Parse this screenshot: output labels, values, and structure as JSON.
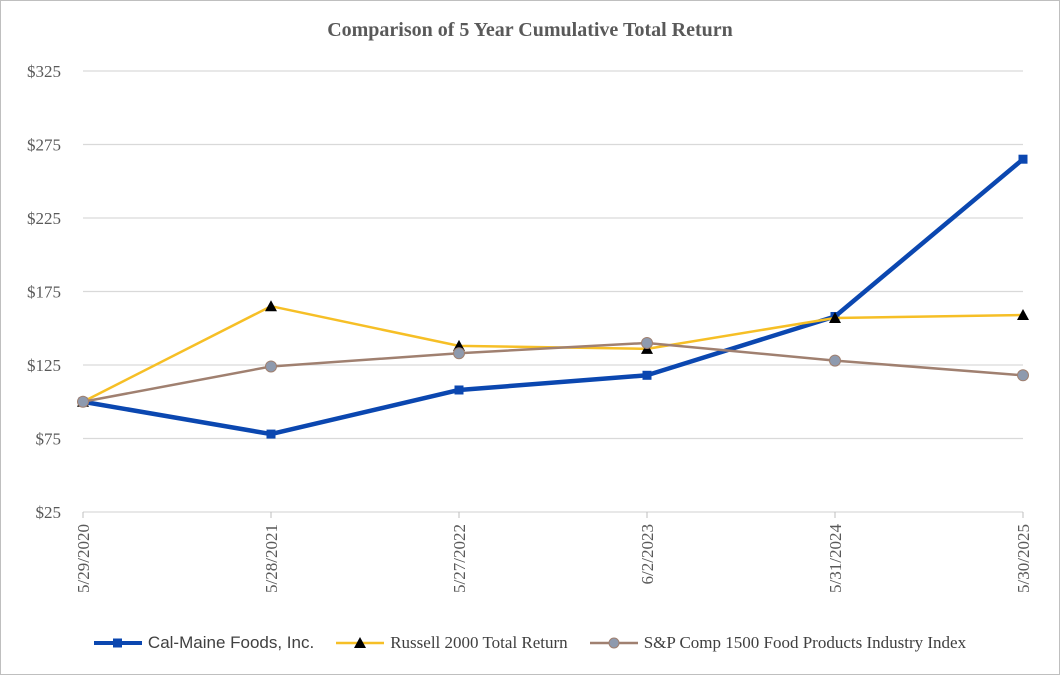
{
  "chart_data": {
    "type": "line",
    "title": "Comparison of 5 Year Cumulative Total Return",
    "categories": [
      "5/29/2020",
      "5/28/2021",
      "5/27/2022",
      "6/2/2023",
      "5/31/2024",
      "5/30/2025"
    ],
    "y_ticks": [
      "$25",
      "$75",
      "$125",
      "$175",
      "$225",
      "$275",
      "$325"
    ],
    "ylim": [
      25,
      325
    ],
    "grid": true,
    "legend_position": "bottom",
    "series": [
      {
        "name": "Cal-Maine Foods, Inc.",
        "values": [
          100,
          78,
          108,
          118,
          158,
          265
        ],
        "color": "#0b47b0",
        "marker": "square"
      },
      {
        "name": "Russell 2000 Total Return",
        "values": [
          100,
          165,
          138,
          136,
          157,
          159
        ],
        "color": "#f6bf26",
        "marker": "triangle",
        "marker_color": "#000000"
      },
      {
        "name": "S&P Comp 1500 Food Products Industry Index",
        "values": [
          100,
          124,
          133,
          140,
          128,
          118
        ],
        "color": "#a08070",
        "marker": "circle",
        "marker_color": "#8e9aae"
      }
    ]
  }
}
